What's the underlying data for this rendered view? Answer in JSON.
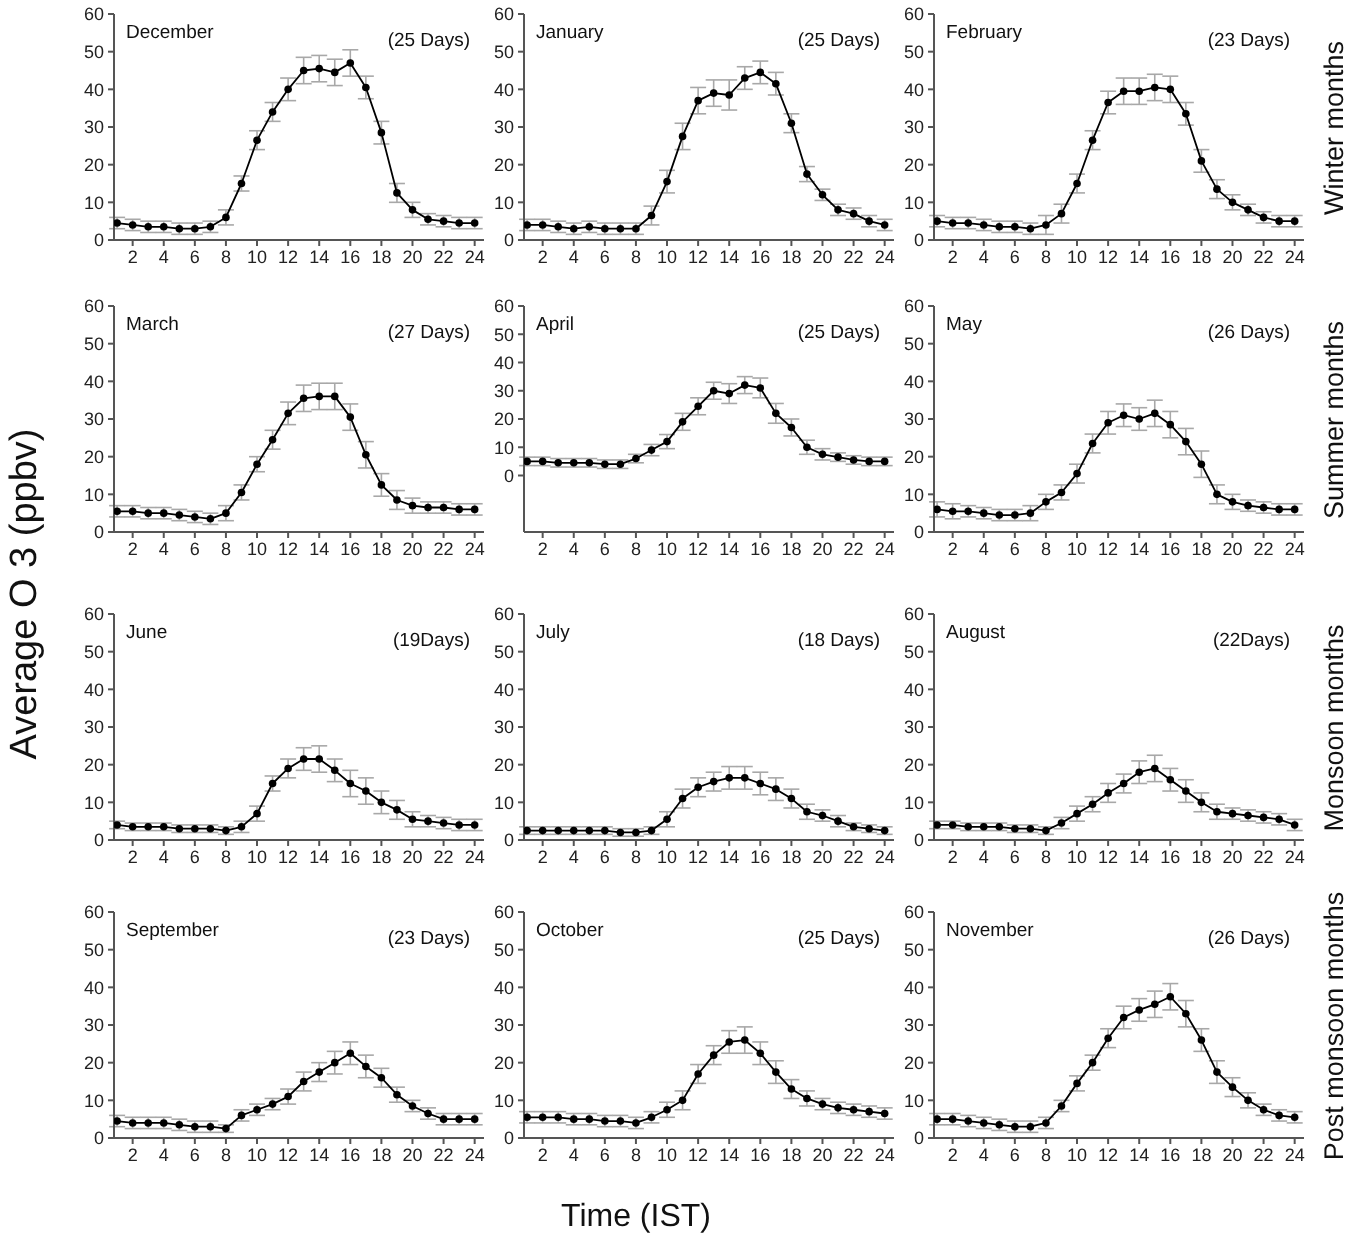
{
  "chart_data": [
    {
      "type": "line",
      "title": "December",
      "subtitle": "(25 Days)",
      "x": [
        1,
        2,
        3,
        4,
        5,
        6,
        7,
        8,
        9,
        10,
        11,
        12,
        13,
        14,
        15,
        16,
        17,
        18,
        19,
        20,
        21,
        22,
        23,
        24
      ],
      "values": [
        4.5,
        4,
        3.5,
        3.5,
        3,
        3,
        3.5,
        6,
        15,
        26.5,
        34,
        40,
        45,
        45.5,
        44.5,
        47,
        40.5,
        28.5,
        12.5,
        8,
        5.5,
        5,
        4.5,
        4.5
      ],
      "errors": [
        1.5,
        1.5,
        1.5,
        1.5,
        1.5,
        1.5,
        1.5,
        2,
        2,
        2.5,
        2.5,
        3,
        3.5,
        3.5,
        3.5,
        3.5,
        3,
        3,
        2.5,
        2,
        1.5,
        1.5,
        1.5,
        1.5
      ],
      "color": "#000000",
      "marker": "circle",
      "xlim": [
        0.8,
        24.6
      ],
      "xticks": [
        2,
        4,
        6,
        8,
        10,
        12,
        14,
        16,
        18,
        20,
        22,
        24
      ],
      "ylim": [
        0,
        60
      ],
      "yticks": [
        0,
        10,
        20,
        30,
        40,
        50,
        60
      ]
    },
    {
      "type": "line",
      "title": "January",
      "subtitle": "(25 Days)",
      "x": [
        1,
        2,
        3,
        4,
        5,
        6,
        7,
        8,
        9,
        10,
        11,
        12,
        13,
        14,
        15,
        16,
        17,
        18,
        19,
        20,
        21,
        22,
        23,
        24
      ],
      "values": [
        4,
        4,
        3.5,
        3,
        3.5,
        3,
        3,
        3,
        6.5,
        15.5,
        27.5,
        37,
        39,
        38.5,
        43,
        44.5,
        41.5,
        31,
        17.5,
        12,
        8,
        7,
        5,
        4
      ],
      "errors": [
        1.5,
        1.5,
        1.5,
        1.5,
        1.5,
        1.5,
        1.5,
        1.5,
        2.5,
        3,
        3.5,
        3.5,
        3.5,
        4,
        3,
        3,
        3,
        2.5,
        2,
        1.5,
        1.5,
        1.5,
        1.5,
        1.5
      ],
      "color": "#000000",
      "marker": "circle",
      "xlim": [
        0.8,
        24.6
      ],
      "xticks": [
        2,
        4,
        6,
        8,
        10,
        12,
        14,
        16,
        18,
        20,
        22,
        24
      ],
      "ylim": [
        0,
        60
      ],
      "yticks": [
        0,
        10,
        20,
        30,
        40,
        50,
        60
      ]
    },
    {
      "type": "line",
      "title": "February",
      "subtitle": "(23 Days)",
      "annotations": [
        "Winter months"
      ],
      "x": [
        1,
        2,
        3,
        4,
        5,
        6,
        7,
        8,
        9,
        10,
        11,
        12,
        13,
        14,
        15,
        16,
        17,
        18,
        19,
        20,
        21,
        22,
        23,
        24
      ],
      "values": [
        5,
        4.5,
        4.5,
        4,
        3.5,
        3.5,
        3,
        4,
        7,
        15,
        26.5,
        36.5,
        39.5,
        39.5,
        40.5,
        40,
        33.5,
        21,
        13.5,
        10,
        8,
        6,
        5,
        5
      ],
      "errors": [
        1.5,
        1.5,
        1.5,
        1.5,
        1.5,
        1.5,
        1.5,
        2.5,
        2.5,
        2.5,
        2.5,
        3,
        3.5,
        3.5,
        3.5,
        3.5,
        3,
        3,
        2.5,
        2,
        1.5,
        1.5,
        1.5,
        1.5
      ],
      "color": "#000000",
      "marker": "circle",
      "xlim": [
        0.8,
        24.6
      ],
      "xticks": [
        2,
        4,
        6,
        8,
        10,
        12,
        14,
        16,
        18,
        20,
        22,
        24
      ],
      "ylim": [
        0,
        60
      ],
      "yticks": [
        0,
        10,
        20,
        30,
        40,
        50,
        60
      ]
    },
    {
      "type": "line",
      "title": "March",
      "subtitle": "(27 Days)",
      "ylabel": "Average O 3 (ppbv)",
      "x": [
        1,
        2,
        3,
        4,
        5,
        6,
        7,
        8,
        9,
        10,
        11,
        12,
        13,
        14,
        15,
        16,
        17,
        18,
        19,
        20,
        21,
        22,
        23,
        24
      ],
      "values": [
        5.5,
        5.5,
        5,
        5,
        4.5,
        4,
        3.5,
        5,
        10.5,
        18,
        24.5,
        31.5,
        35.5,
        36,
        36,
        30.5,
        20.5,
        12.5,
        8.5,
        7,
        6.5,
        6.5,
        6,
        6
      ],
      "errors": [
        1.5,
        1.5,
        1.5,
        1.5,
        1.5,
        1.5,
        1.5,
        2,
        2,
        2,
        2.5,
        3,
        3.5,
        3.5,
        3.5,
        3.5,
        3.5,
        3,
        2.5,
        2,
        1.5,
        1.5,
        1.5,
        1.5
      ],
      "color": "#000000",
      "marker": "circle",
      "xlim": [
        0.8,
        24.6
      ],
      "xticks": [
        2,
        4,
        6,
        8,
        10,
        12,
        14,
        16,
        18,
        20,
        22,
        24
      ],
      "ylim": [
        0,
        60
      ],
      "yticks": [
        0,
        10,
        20,
        30,
        40,
        50,
        60
      ]
    },
    {
      "type": "line",
      "title": "April",
      "subtitle": "(25 Days)",
      "x": [
        1,
        2,
        3,
        4,
        5,
        6,
        7,
        8,
        9,
        10,
        11,
        12,
        13,
        14,
        15,
        16,
        17,
        18,
        19,
        20,
        21,
        22,
        23,
        24
      ],
      "values": [
        5,
        5,
        4.5,
        4.5,
        4.5,
        4,
        4,
        6,
        9,
        12,
        19,
        24.5,
        30,
        29,
        32,
        31,
        22,
        17,
        10,
        7.5,
        6.5,
        5.5,
        5,
        5
      ],
      "errors": [
        1.5,
        1.5,
        1.5,
        1.5,
        1.5,
        1.5,
        1.5,
        1.5,
        2,
        2.5,
        3,
        3,
        3,
        3.5,
        3,
        3.5,
        3.5,
        3,
        2.5,
        2,
        1.5,
        1.5,
        1.5,
        1.5
      ],
      "color": "#000000",
      "marker": "circle",
      "xlim": [
        0.8,
        24.6
      ],
      "xticks": [
        2,
        4,
        6,
        8,
        10,
        12,
        14,
        16,
        18,
        20,
        22,
        24
      ],
      "ylim": [
        -20,
        60
      ],
      "yticks": [
        0,
        10,
        20,
        30,
        40,
        50,
        60
      ]
    },
    {
      "type": "line",
      "title": "May",
      "subtitle": "(26 Days)",
      "annotations": [
        "Summer months"
      ],
      "x": [
        1,
        2,
        3,
        4,
        5,
        6,
        7,
        8,
        9,
        10,
        11,
        12,
        13,
        14,
        15,
        16,
        17,
        18,
        19,
        20,
        21,
        22,
        23,
        24
      ],
      "values": [
        6,
        5.5,
        5.5,
        5,
        4.5,
        4.5,
        5,
        8,
        10.5,
        15.5,
        23.5,
        29,
        31,
        30,
        31.5,
        28.5,
        24,
        18,
        10,
        8,
        7,
        6.5,
        6,
        6
      ],
      "errors": [
        2,
        2,
        1.5,
        1.5,
        1.5,
        1.5,
        2,
        2,
        2,
        2.5,
        2.5,
        3,
        3,
        3,
        3.5,
        3.5,
        3.5,
        3.5,
        2.5,
        2,
        1.5,
        1.5,
        1.5,
        1.5
      ],
      "color": "#000000",
      "marker": "circle",
      "xlim": [
        0.8,
        24.6
      ],
      "xticks": [
        2,
        4,
        6,
        8,
        10,
        12,
        14,
        16,
        18,
        20,
        22,
        24
      ],
      "ylim": [
        0,
        60
      ],
      "yticks": [
        0,
        10,
        20,
        30,
        40,
        50,
        60
      ]
    },
    {
      "type": "line",
      "title": "June",
      "subtitle": "(19Days)",
      "x": [
        1,
        2,
        3,
        4,
        5,
        6,
        7,
        8,
        9,
        10,
        11,
        12,
        13,
        14,
        15,
        16,
        17,
        18,
        19,
        20,
        21,
        22,
        23,
        24
      ],
      "values": [
        4,
        3.5,
        3.5,
        3.5,
        3,
        3,
        3,
        2.5,
        3.5,
        7,
        15,
        19,
        21.5,
        21.5,
        18.5,
        15,
        13,
        10,
        8,
        5.5,
        5,
        4.5,
        4,
        4
      ],
      "errors": [
        1,
        1,
        1,
        1,
        1,
        1,
        1,
        1,
        1.5,
        2,
        2,
        2.5,
        3,
        3.5,
        3,
        3.5,
        3.5,
        3,
        2.5,
        2,
        1.5,
        1.5,
        1.5,
        1.5
      ],
      "color": "#000000",
      "marker": "circle",
      "xlim": [
        0.8,
        24.6
      ],
      "xticks": [
        2,
        4,
        6,
        8,
        10,
        12,
        14,
        16,
        18,
        20,
        22,
        24
      ],
      "ylim": [
        0,
        60
      ],
      "yticks": [
        0,
        10,
        20,
        30,
        40,
        50,
        60
      ]
    },
    {
      "type": "line",
      "title": "July",
      "subtitle": "(18 Days)",
      "x": [
        1,
        2,
        3,
        4,
        5,
        6,
        7,
        8,
        9,
        10,
        11,
        12,
        13,
        14,
        15,
        16,
        17,
        18,
        19,
        20,
        21,
        22,
        23,
        24
      ],
      "values": [
        2.5,
        2.5,
        2.5,
        2.5,
        2.5,
        2.5,
        2,
        2,
        2.5,
        5.5,
        11,
        14,
        15.5,
        16.5,
        16.5,
        15,
        13.5,
        11,
        7.5,
        6.5,
        5,
        3.5,
        3,
        2.5
      ],
      "errors": [
        1,
        1,
        1,
        1,
        1,
        1,
        1,
        1,
        1,
        2,
        2.5,
        2.5,
        2.5,
        3,
        3,
        3,
        3,
        2.5,
        2,
        1.5,
        1.5,
        1,
        1,
        1
      ],
      "color": "#000000",
      "marker": "circle",
      "xlim": [
        0.8,
        24.6
      ],
      "xticks": [
        2,
        4,
        6,
        8,
        10,
        12,
        14,
        16,
        18,
        20,
        22,
        24
      ],
      "ylim": [
        0,
        60
      ],
      "yticks": [
        0,
        10,
        20,
        30,
        40,
        50,
        60
      ]
    },
    {
      "type": "line",
      "title": "August",
      "subtitle": "(22Days)",
      "annotations": [
        "Monsoon months"
      ],
      "x": [
        1,
        2,
        3,
        4,
        5,
        6,
        7,
        8,
        9,
        10,
        11,
        12,
        13,
        14,
        15,
        16,
        17,
        18,
        19,
        20,
        21,
        22,
        23,
        24
      ],
      "values": [
        4,
        4,
        3.5,
        3.5,
        3.5,
        3,
        3,
        2.5,
        4.5,
        7,
        9.5,
        12.5,
        15,
        18,
        19,
        16,
        13,
        10,
        7.5,
        7,
        6.5,
        6,
        5.5,
        4
      ],
      "errors": [
        1,
        1,
        1,
        1,
        1,
        1,
        1,
        1,
        1.5,
        2,
        2,
        2.5,
        2.5,
        3,
        3.5,
        3,
        3,
        2.5,
        2,
        1.5,
        1.5,
        1.5,
        1.5,
        1.5
      ],
      "color": "#000000",
      "marker": "circle",
      "xlim": [
        0.8,
        24.6
      ],
      "xticks": [
        2,
        4,
        6,
        8,
        10,
        12,
        14,
        16,
        18,
        20,
        22,
        24
      ],
      "ylim": [
        0,
        60
      ],
      "yticks": [
        0,
        10,
        20,
        30,
        40,
        50,
        60
      ]
    },
    {
      "type": "line",
      "title": "September",
      "subtitle": "(23 Days)",
      "x": [
        1,
        2,
        3,
        4,
        5,
        6,
        7,
        8,
        9,
        10,
        11,
        12,
        13,
        14,
        15,
        16,
        17,
        18,
        19,
        20,
        21,
        22,
        23,
        24
      ],
      "values": [
        4.5,
        4,
        4,
        4,
        3.5,
        3,
        3,
        2.5,
        6,
        7.5,
        9,
        11,
        15,
        17.5,
        20,
        22.5,
        19,
        16,
        11.5,
        8.5,
        6.5,
        5,
        5,
        5
      ],
      "errors": [
        1.5,
        1.5,
        1.5,
        1.5,
        1.5,
        1.5,
        1.5,
        1,
        1.5,
        1.5,
        1.5,
        2,
        2.5,
        2.5,
        3,
        3,
        3,
        2.5,
        2,
        1.5,
        1.5,
        1.5,
        1.5,
        1.5
      ],
      "color": "#000000",
      "marker": "circle",
      "xlim": [
        0.8,
        24.6
      ],
      "xticks": [
        2,
        4,
        6,
        8,
        10,
        12,
        14,
        16,
        18,
        20,
        22,
        24
      ],
      "ylim": [
        0,
        60
      ],
      "yticks": [
        0,
        10,
        20,
        30,
        40,
        50,
        60
      ]
    },
    {
      "type": "line",
      "title": "October",
      "subtitle": "(25 Days)",
      "xlabel": "Time (IST)",
      "x": [
        1,
        2,
        3,
        4,
        5,
        6,
        7,
        8,
        9,
        10,
        11,
        12,
        13,
        14,
        15,
        16,
        17,
        18,
        19,
        20,
        21,
        22,
        23,
        24
      ],
      "values": [
        5.5,
        5.5,
        5.5,
        5,
        5,
        4.5,
        4.5,
        4,
        5.5,
        7.5,
        10,
        17,
        22,
        25.5,
        26,
        22.5,
        17.5,
        13,
        10.5,
        9,
        8,
        7.5,
        7,
        6.5
      ],
      "errors": [
        1.5,
        1.5,
        1.5,
        1.5,
        1.5,
        1.5,
        1.5,
        1.5,
        1.5,
        2,
        2.5,
        2.5,
        2.5,
        3,
        3.5,
        3,
        3,
        2.5,
        2,
        1.5,
        1.5,
        1.5,
        1.5,
        1.5
      ],
      "color": "#000000",
      "marker": "circle",
      "xlim": [
        0.8,
        24.6
      ],
      "xticks": [
        2,
        4,
        6,
        8,
        10,
        12,
        14,
        16,
        18,
        20,
        22,
        24
      ],
      "ylim": [
        0,
        60
      ],
      "yticks": [
        0,
        10,
        20,
        30,
        40,
        50,
        60
      ]
    },
    {
      "type": "line",
      "title": "November",
      "subtitle": "(26 Days)",
      "annotations": [
        "Post monsoon months"
      ],
      "x": [
        1,
        2,
        3,
        4,
        5,
        6,
        7,
        8,
        9,
        10,
        11,
        12,
        13,
        14,
        15,
        16,
        17,
        18,
        19,
        20,
        21,
        22,
        23,
        24
      ],
      "values": [
        5,
        5,
        4.5,
        4,
        3.5,
        3,
        3,
        4,
        8.5,
        14.5,
        20,
        26.5,
        32,
        34,
        35.5,
        37.5,
        33,
        26,
        17.5,
        13.5,
        10,
        7.5,
        6,
        5.5
      ],
      "errors": [
        1.5,
        1.5,
        1.5,
        1.5,
        1.5,
        1.5,
        1.5,
        1.5,
        1.5,
        2,
        2,
        2.5,
        3,
        3,
        3.5,
        3.5,
        3.5,
        3,
        3,
        2.5,
        2,
        1.5,
        1.5,
        1.5
      ],
      "color": "#000000",
      "marker": "circle",
      "xlim": [
        0.8,
        24.6
      ],
      "xticks": [
        2,
        4,
        6,
        8,
        10,
        12,
        14,
        16,
        18,
        20,
        22,
        24
      ],
      "ylim": [
        0,
        60
      ],
      "yticks": [
        0,
        10,
        20,
        30,
        40,
        50,
        60
      ]
    }
  ]
}
